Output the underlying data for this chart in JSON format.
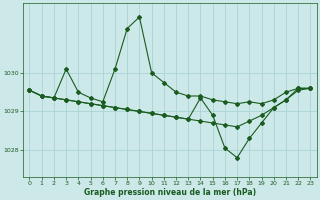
{
  "title": "Graphe pression niveau de la mer (hPa)",
  "bg_color": "#cce8e8",
  "grid_color": "#aad4d4",
  "line_color": "#1a5c20",
  "xlim": [
    -0.5,
    23.5
  ],
  "ylim": [
    1027.3,
    1031.8
  ],
  "yticks": [
    1028,
    1029,
    1030
  ],
  "xticks": [
    0,
    1,
    2,
    3,
    4,
    5,
    6,
    7,
    8,
    9,
    10,
    11,
    12,
    13,
    14,
    15,
    16,
    17,
    18,
    19,
    20,
    21,
    22,
    23
  ],
  "series1_x": [
    0,
    1,
    2,
    3,
    4,
    5,
    6,
    7,
    8,
    9,
    10,
    11,
    12,
    13,
    14,
    15,
    16,
    17,
    18,
    19,
    20,
    21,
    22,
    23
  ],
  "series1_y": [
    1029.55,
    1029.4,
    1029.35,
    1030.1,
    1029.5,
    1029.35,
    1029.25,
    1030.1,
    1031.15,
    1031.45,
    1030.0,
    1029.75,
    1029.5,
    1029.4,
    1029.4,
    1029.3,
    1029.25,
    1029.2,
    1029.25,
    1029.2,
    1029.3,
    1029.5,
    1029.6,
    1029.6
  ],
  "series2_x": [
    0,
    1,
    2,
    3,
    4,
    5,
    6,
    7,
    8,
    9,
    10,
    11,
    12,
    13,
    14,
    15,
    16,
    17,
    18,
    19,
    20,
    21,
    22,
    23
  ],
  "series2_y": [
    1029.55,
    1029.4,
    1029.35,
    1029.3,
    1029.25,
    1029.2,
    1029.15,
    1029.1,
    1029.05,
    1029.0,
    1028.95,
    1028.9,
    1028.85,
    1028.8,
    1029.35,
    1028.9,
    1028.05,
    1027.8,
    1028.3,
    1028.7,
    1029.1,
    1029.3,
    1029.6,
    1029.6
  ],
  "series3_x": [
    0,
    1,
    2,
    3,
    4,
    5,
    6,
    7,
    8,
    9,
    10,
    11,
    12,
    13,
    14,
    15,
    16,
    17,
    18,
    19,
    20,
    21,
    22,
    23
  ],
  "series3_y": [
    1029.55,
    1029.4,
    1029.35,
    1029.3,
    1029.25,
    1029.2,
    1029.15,
    1029.1,
    1029.05,
    1029.0,
    1028.95,
    1028.9,
    1028.85,
    1028.8,
    1028.75,
    1028.7,
    1028.65,
    1028.6,
    1028.75,
    1028.9,
    1029.1,
    1029.3,
    1029.55,
    1029.6
  ]
}
